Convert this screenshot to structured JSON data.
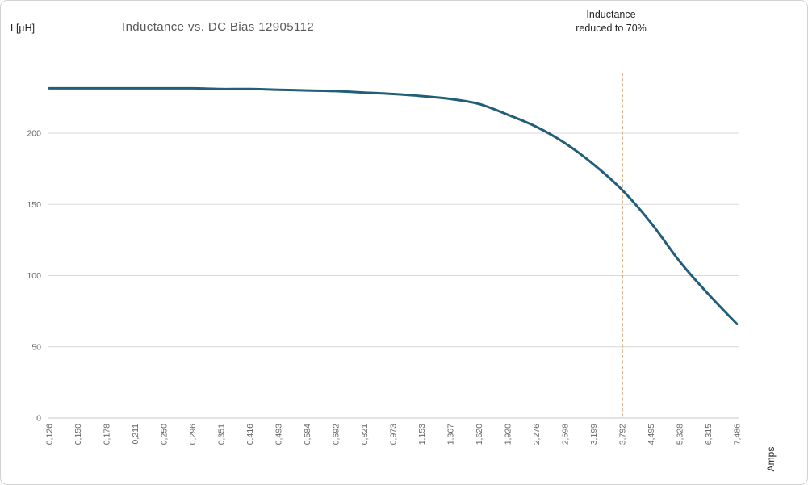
{
  "header": {
    "y_axis_unit": "L[µH]",
    "title": "Inductance vs. DC Bias 12905112",
    "annotation_line1": "Inductance",
    "annotation_line2": "reduced to 70%",
    "x_axis_unit": "Amps"
  },
  "colors": {
    "line": "#215e78",
    "threshold_line": "#bf8a45",
    "grid": "#d9d9d9",
    "axis": "#c6c6c6",
    "title_text": "#595959",
    "tick_text": "#666666",
    "annotation_text": "#262626"
  },
  "chart_data": {
    "type": "line",
    "title": "Inductance vs. DC Bias 12905112",
    "xlabel": "Amps",
    "ylabel": "L[µH]",
    "categories": [
      "0,126",
      "0,150",
      "0,178",
      "0,211",
      "0,250",
      "0,296",
      "0,351",
      "0,416",
      "0,493",
      "0,584",
      "0,692",
      "0,821",
      "0,973",
      "1,153",
      "1,367",
      "1,620",
      "1,920",
      "2,276",
      "2,698",
      "3,199",
      "3,792",
      "4,495",
      "5,328",
      "6,315",
      "7,486"
    ],
    "values": [
      231.5,
      231.5,
      231.5,
      231.5,
      231.5,
      231.5,
      231,
      231,
      230.5,
      230,
      229.5,
      228.5,
      227.5,
      226,
      224,
      220.5,
      213,
      204.5,
      193,
      178,
      160,
      137,
      110,
      87,
      66
    ],
    "x_scale": "categorical (log-spaced DC bias current in amps, comma decimal separator)",
    "ylim": [
      0,
      240
    ],
    "yticks": [
      0,
      50,
      100,
      150,
      200
    ],
    "grid": true,
    "legend": "none",
    "annotation": {
      "text": "Inductance reduced to 70%",
      "at_category": "3,792",
      "category_index": 20,
      "style": "vertical dashed line",
      "color": "#bf8a45"
    }
  }
}
